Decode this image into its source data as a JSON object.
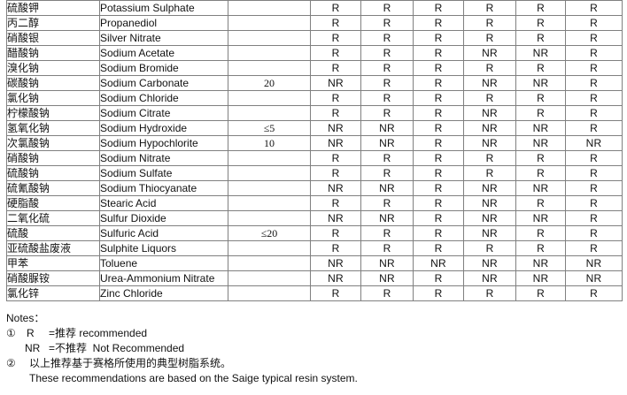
{
  "table": {
    "border_color": "#808080",
    "rating_values": [
      "R",
      "NR"
    ],
    "rows": [
      {
        "cn": "硫酸钾",
        "en": "Potassium Sulphate",
        "conc": "",
        "ratings": [
          "R",
          "R",
          "R",
          "R",
          "R",
          "R"
        ]
      },
      {
        "cn": "丙二醇",
        "en": "Propanediol",
        "conc": "",
        "ratings": [
          "R",
          "R",
          "R",
          "R",
          "R",
          "R"
        ]
      },
      {
        "cn": "硝酸银",
        "en": "Silver Nitrate",
        "conc": "",
        "ratings": [
          "R",
          "R",
          "R",
          "R",
          "R",
          "R"
        ]
      },
      {
        "cn": "醋酸钠",
        "en": "Sodium Acetate",
        "conc": "",
        "ratings": [
          "R",
          "R",
          "R",
          "NR",
          "NR",
          "R"
        ]
      },
      {
        "cn": "溴化钠",
        "en": "Sodium Bromide",
        "conc": "",
        "ratings": [
          "R",
          "R",
          "R",
          "R",
          "R",
          "R"
        ]
      },
      {
        "cn": "碳酸钠",
        "en": "Sodium Carbonate",
        "conc": "20",
        "ratings": [
          "NR",
          "R",
          "R",
          "NR",
          "NR",
          "R"
        ]
      },
      {
        "cn": "氯化钠",
        "en": "Sodium Chloride",
        "conc": "",
        "ratings": [
          "R",
          "R",
          "R",
          "R",
          "R",
          "R"
        ]
      },
      {
        "cn": "柠檬酸钠",
        "en": "Sodium Citrate",
        "conc": "",
        "ratings": [
          "R",
          "R",
          "R",
          "NR",
          "R",
          "R"
        ]
      },
      {
        "cn": "氢氧化钠",
        "en": "Sodium Hydroxide",
        "conc": "≤5",
        "ratings": [
          "NR",
          "NR",
          "R",
          "NR",
          "NR",
          "R"
        ]
      },
      {
        "cn": "次氯酸钠",
        "en": "Sodium Hypochlorite",
        "conc": "10",
        "ratings": [
          "NR",
          "NR",
          "R",
          "NR",
          "NR",
          "NR"
        ]
      },
      {
        "cn": "硝酸钠",
        "en": "Sodium Nitrate",
        "conc": "",
        "ratings": [
          "R",
          "R",
          "R",
          "R",
          "R",
          "R"
        ]
      },
      {
        "cn": "硫酸钠",
        "en": "Sodium Sulfate",
        "conc": "",
        "ratings": [
          "R",
          "R",
          "R",
          "R",
          "R",
          "R"
        ]
      },
      {
        "cn": "硫氰酸钠",
        "en": "Sodium Thiocyanate",
        "conc": "",
        "ratings": [
          "NR",
          "NR",
          "R",
          "NR",
          "NR",
          "R"
        ]
      },
      {
        "cn": "硬脂酸",
        "en": "Stearic Acid",
        "conc": "",
        "ratings": [
          "R",
          "R",
          "R",
          "NR",
          "R",
          "R"
        ]
      },
      {
        "cn": "二氧化硫",
        "en": "Sulfur Dioxide",
        "conc": "",
        "ratings": [
          "NR",
          "NR",
          "R",
          "NR",
          "NR",
          "R"
        ]
      },
      {
        "cn": "硫酸",
        "en": "Sulfuric Acid",
        "conc": "≤20",
        "ratings": [
          "R",
          "R",
          "R",
          "NR",
          "R",
          "R"
        ]
      },
      {
        "cn": "亚硫酸盐废液",
        "en": "Sulphite Liquors",
        "conc": "",
        "ratings": [
          "R",
          "R",
          "R",
          "R",
          "R",
          "R"
        ]
      },
      {
        "cn": "甲苯",
        "en": "Toluene",
        "conc": "",
        "ratings": [
          "NR",
          "NR",
          "NR",
          "NR",
          "NR",
          "NR"
        ]
      },
      {
        "cn": "硝酸脲铵",
        "en": "Urea-Ammonium Nitrate",
        "conc": "",
        "ratings": [
          "NR",
          "NR",
          "R",
          "NR",
          "NR",
          "NR"
        ]
      },
      {
        "cn": "氯化锌",
        "en": "Zinc Chloride",
        "conc": "",
        "ratings": [
          "R",
          "R",
          "R",
          "R",
          "R",
          "R"
        ]
      }
    ]
  },
  "notes": {
    "title": "Notes：",
    "note1_marker": "①",
    "note1_term": "R",
    "note1_def": "=推荐 recommended",
    "note2_term": "NR",
    "note2_def": "=不推荐  Not Recommended",
    "note3_marker": "②",
    "note3_cn": "以上推荐基于赛格所使用的典型树脂系统。",
    "note3_en": "These recommendations are based on the Saige typical resin system."
  }
}
